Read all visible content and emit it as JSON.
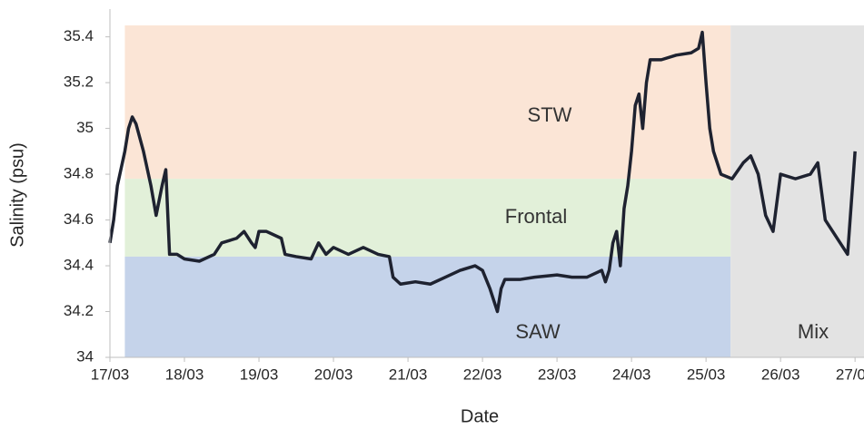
{
  "chart_data": {
    "type": "line",
    "x_label": "Date",
    "y_label": "Salinity (psu)",
    "xlim": [
      0,
      10.12
    ],
    "ylim": [
      34,
      35.45
    ],
    "xticks": [
      {
        "value": 0,
        "label": "17/03"
      },
      {
        "value": 1,
        "label": "18/03"
      },
      {
        "value": 2,
        "label": "19/03"
      },
      {
        "value": 3,
        "label": "20/03"
      },
      {
        "value": 4,
        "label": "21/03"
      },
      {
        "value": 5,
        "label": "22/03"
      },
      {
        "value": 6,
        "label": "23/03"
      },
      {
        "value": 7,
        "label": "24/03"
      },
      {
        "value": 8,
        "label": "25/03"
      },
      {
        "value": 9,
        "label": "26/03"
      },
      {
        "value": 10,
        "label": "27/03"
      }
    ],
    "yticks": [
      34,
      34.2,
      34.4,
      34.6,
      34.8,
      35,
      35.2,
      35.4
    ],
    "regions": [
      {
        "label": "STW",
        "color": "#fbe5d6",
        "x": [
          0.2,
          8.33
        ],
        "y": [
          34.78,
          35.45
        ]
      },
      {
        "label": "Frontal",
        "color": "#e2f0d9",
        "x": [
          0.2,
          8.33
        ],
        "y": [
          34.44,
          34.78
        ]
      },
      {
        "label": "SAW",
        "color": "#c5d3ea",
        "x": [
          0.2,
          8.33
        ],
        "y": [
          34,
          34.44
        ]
      },
      {
        "label": "Mix",
        "color": "#e3e3e3",
        "x": [
          8.33,
          10.12
        ],
        "y": [
          34,
          35.45
        ]
      }
    ],
    "series": [
      {
        "color": "#1e2230",
        "x": [
          0,
          0.05,
          0.1,
          0.2,
          0.25,
          0.3,
          0.35,
          0.45,
          0.55,
          0.62,
          0.7,
          0.75,
          0.8,
          0.9,
          1.0,
          1.2,
          1.4,
          1.5,
          1.7,
          1.8,
          1.9,
          1.95,
          2.0,
          2.1,
          2.3,
          2.35,
          2.5,
          2.7,
          2.8,
          2.9,
          3.0,
          3.2,
          3.4,
          3.6,
          3.75,
          3.8,
          3.9,
          4.1,
          4.3,
          4.5,
          4.7,
          4.9,
          5.0,
          5.1,
          5.2,
          5.25,
          5.3,
          5.5,
          5.7,
          6.0,
          6.2,
          6.4,
          6.6,
          6.65,
          6.7,
          6.75,
          6.8,
          6.85,
          6.9,
          6.95,
          7.0,
          7.05,
          7.1,
          7.15,
          7.2,
          7.25,
          7.4,
          7.6,
          7.8,
          7.9,
          7.95,
          8.0,
          8.05,
          8.1,
          8.2,
          8.35,
          8.5,
          8.6,
          8.7,
          8.8,
          8.9,
          9.0,
          9.2,
          9.4,
          9.5,
          9.6,
          9.7,
          9.8,
          9.9,
          10.0
        ],
        "values": [
          34.5,
          34.6,
          34.75,
          34.9,
          35.0,
          35.05,
          35.02,
          34.9,
          34.75,
          34.62,
          34.75,
          34.82,
          34.45,
          34.45,
          34.43,
          34.42,
          34.45,
          34.5,
          34.52,
          34.55,
          34.5,
          34.48,
          34.55,
          34.55,
          34.52,
          34.45,
          34.44,
          34.43,
          34.5,
          34.45,
          34.48,
          34.45,
          34.48,
          34.45,
          34.44,
          34.35,
          34.32,
          34.33,
          34.32,
          34.35,
          34.38,
          34.4,
          34.38,
          34.3,
          34.2,
          34.3,
          34.34,
          34.34,
          34.35,
          34.36,
          34.35,
          34.35,
          34.38,
          34.33,
          34.38,
          34.5,
          34.55,
          34.4,
          34.65,
          34.75,
          34.9,
          35.1,
          35.15,
          35.0,
          35.2,
          35.3,
          35.3,
          35.32,
          35.33,
          35.35,
          35.42,
          35.2,
          35.0,
          34.9,
          34.8,
          34.78,
          34.85,
          34.88,
          34.8,
          34.62,
          34.55,
          34.8,
          34.78,
          34.8,
          34.85,
          34.6,
          34.55,
          34.5,
          34.45,
          34.9
        ]
      }
    ]
  }
}
